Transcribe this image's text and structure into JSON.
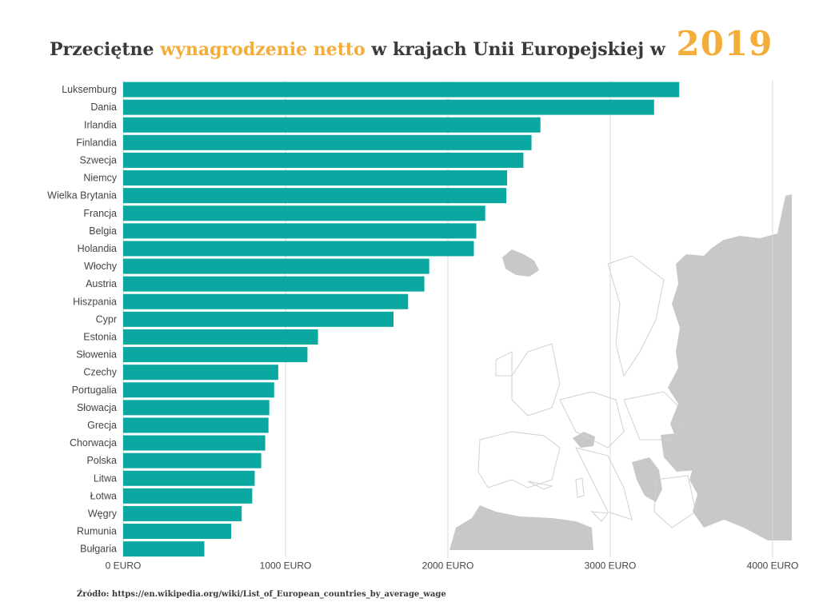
{
  "title": {
    "part1": "Przeciętne",
    "highlight": "wynagrodzenie netto",
    "part2": "w krajach Unii Europejskiej w",
    "year": "2019"
  },
  "source": "Źródło: https://en.wikipedia.org/wiki/List_of_European_countries_by_average_wage",
  "colors": {
    "bar": "#0aa8a0",
    "accent": "#f2ad3a",
    "map": "#c8c8c8",
    "grid": "#d9d9d9",
    "text": "#444444"
  },
  "chart_data": {
    "type": "bar",
    "orientation": "horizontal",
    "categories": [
      "Luksemburg",
      "Dania",
      "Irlandia",
      "Finlandia",
      "Szwecja",
      "Niemcy",
      "Wielka Brytania",
      "Francja",
      "Belgia",
      "Holandia",
      "Włochy",
      "Austria",
      "Hiszpania",
      "Cypr",
      "Estonia",
      "Słowenia",
      "Czechy",
      "Portugalia",
      "Słowacja",
      "Grecja",
      "Chorwacja",
      "Polska",
      "Litwa",
      "Łotwa",
      "Węgry",
      "Rumunia",
      "Bułgaria"
    ],
    "values": [
      3425,
      3270,
      2570,
      2515,
      2465,
      2365,
      2360,
      2230,
      2175,
      2160,
      1885,
      1855,
      1755,
      1665,
      1200,
      1135,
      955,
      930,
      900,
      895,
      875,
      850,
      810,
      795,
      730,
      665,
      500
    ],
    "xlim": [
      0,
      4000
    ],
    "xticks": [
      0,
      1000,
      2000,
      3000,
      4000
    ],
    "xtick_labels": [
      "0 EURO",
      "1000 EURO",
      "2000 EURO",
      "3000 EURO",
      "4000 EURO"
    ],
    "grid": true
  }
}
